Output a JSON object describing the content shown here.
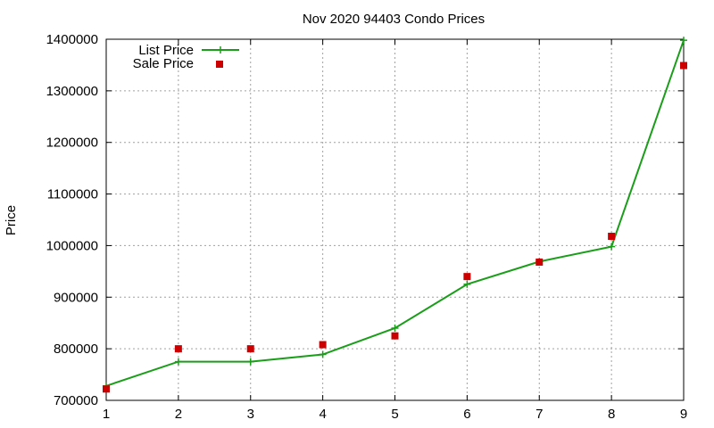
{
  "chart_data": {
    "type": "line",
    "title": "Nov 2020 94403 Condo Prices",
    "xlabel": "",
    "ylabel": "Price",
    "xlim": [
      1,
      9
    ],
    "ylim": [
      700000,
      1400000
    ],
    "x_ticks": [
      "1",
      "2",
      "3",
      "4",
      "5",
      "6",
      "7",
      "8",
      "9"
    ],
    "y_ticks": [
      "700000",
      "800000",
      "900000",
      "1000000",
      "1100000",
      "1200000",
      "1300000",
      "1400000"
    ],
    "grid": true,
    "legend_position": "top-left",
    "series": [
      {
        "name": "List Price",
        "style": "line-with-plus-markers",
        "color": "#1a9e1a",
        "x": [
          1,
          2,
          3,
          4,
          5,
          6,
          7,
          8,
          9
        ],
        "y": [
          728000,
          775000,
          775000,
          789000,
          840000,
          925000,
          969000,
          998000,
          1398000
        ]
      },
      {
        "name": "Sale Price",
        "style": "square-markers",
        "color": "#cc0000",
        "x": [
          1,
          2,
          3,
          4,
          5,
          6,
          7,
          8,
          9
        ],
        "y": [
          722000,
          800000,
          800000,
          808000,
          825000,
          940000,
          968000,
          1018000,
          1349000
        ]
      }
    ]
  }
}
